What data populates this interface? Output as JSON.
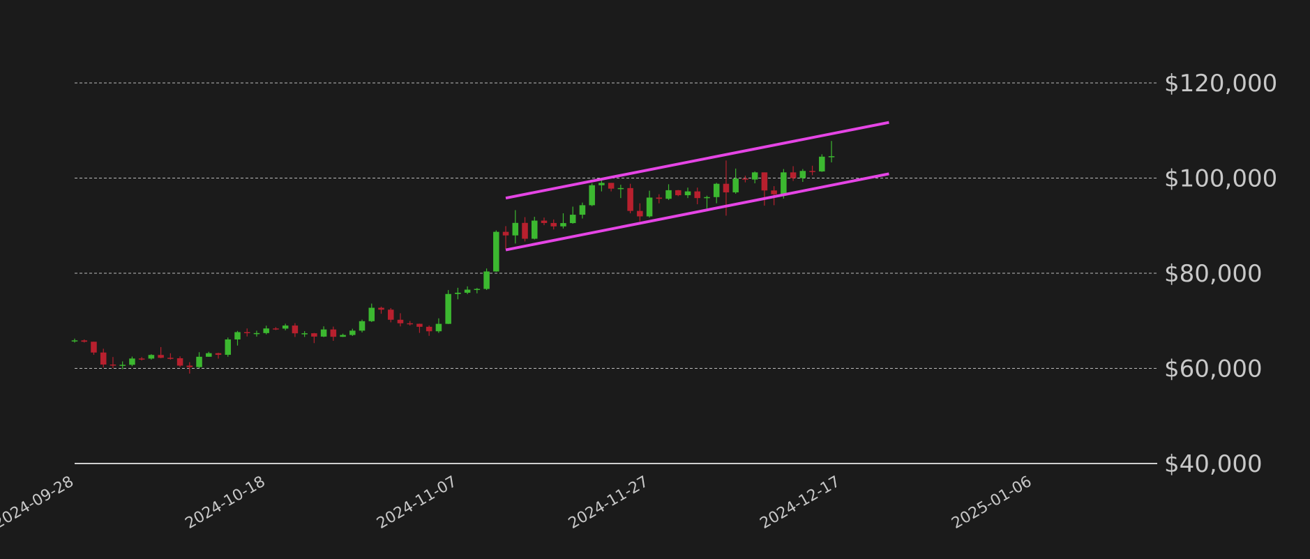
{
  "chart_data": {
    "type": "candlestick",
    "x": [
      "2024-09-28",
      "2024-09-29",
      "2024-09-30",
      "2024-10-01",
      "2024-10-02",
      "2024-10-03",
      "2024-10-04",
      "2024-10-05",
      "2024-10-06",
      "2024-10-07",
      "2024-10-08",
      "2024-10-09",
      "2024-10-10",
      "2024-10-11",
      "2024-10-12",
      "2024-10-13",
      "2024-10-14",
      "2024-10-15",
      "2024-10-16",
      "2024-10-17",
      "2024-10-18",
      "2024-10-19",
      "2024-10-20",
      "2024-10-21",
      "2024-10-22",
      "2024-10-23",
      "2024-10-24",
      "2024-10-25",
      "2024-10-26",
      "2024-10-27",
      "2024-10-28",
      "2024-10-29",
      "2024-10-30",
      "2024-10-31",
      "2024-11-01",
      "2024-11-02",
      "2024-11-03",
      "2024-11-04",
      "2024-11-05",
      "2024-11-06",
      "2024-11-07",
      "2024-11-08",
      "2024-11-09",
      "2024-11-10",
      "2024-11-11",
      "2024-11-12",
      "2024-11-13",
      "2024-11-14",
      "2024-11-15",
      "2024-11-16",
      "2024-11-17",
      "2024-11-18",
      "2024-11-19",
      "2024-11-20",
      "2024-11-21",
      "2024-11-22",
      "2024-11-23",
      "2024-11-24",
      "2024-11-25",
      "2024-11-26",
      "2024-11-27",
      "2024-11-28",
      "2024-11-29",
      "2024-11-30",
      "2024-12-01",
      "2024-12-02",
      "2024-12-03",
      "2024-12-04",
      "2024-12-05",
      "2024-12-06",
      "2024-12-07",
      "2024-12-08",
      "2024-12-09",
      "2024-12-10",
      "2024-12-11",
      "2024-12-12",
      "2024-12-13",
      "2024-12-14",
      "2024-12-15",
      "2024-12-16"
    ],
    "open": [
      65790,
      65880,
      65600,
      63330,
      60800,
      60630,
      60750,
      62070,
      62060,
      62820,
      62220,
      62130,
      60580,
      60270,
      62440,
      63190,
      62850,
      66080,
      67620,
      67400,
      67420,
      68390,
      68360,
      69000,
      67370,
      67380,
      66680,
      68180,
      66640,
      67020,
      67930,
      69920,
      72740,
      72340,
      70220,
      69480,
      69370,
      68740,
      67800,
      69360,
      75640,
      75900,
      76550,
      76700,
      80370,
      88700,
      87950,
      90580,
      87250,
      91060,
      90560,
      89850,
      90540,
      92300,
      94300,
      98500,
      98990,
      97780,
      97900,
      93100,
      91950,
      95900,
      95650,
      97450,
      96400,
      97200,
      95800,
      96000,
      98800,
      97000,
      99900,
      99700,
      101200,
      97400,
      96600,
      101200,
      100000,
      101500,
      101400,
      104500
    ],
    "high": [
      66260,
      66080,
      65600,
      64130,
      62390,
      61470,
      62480,
      62370,
      62980,
      64480,
      63180,
      62520,
      61300,
      63400,
      63480,
      63290,
      66480,
      67880,
      68390,
      67920,
      68970,
      68670,
      69380,
      69500,
      67820,
      67450,
      68840,
      68780,
      67300,
      68330,
      70240,
      73620,
      72980,
      72680,
      71590,
      69950,
      69400,
      69020,
      70520,
      76460,
      76940,
      77240,
      76900,
      81000,
      89000,
      89900,
      93260,
      91790,
      91860,
      91700,
      91300,
      92600,
      94000,
      94850,
      98900,
      99500,
      98990,
      98600,
      98800,
      94700,
      97350,
      96600,
      98700,
      97500,
      98000,
      98000,
      96300,
      99000,
      103700,
      102000,
      100500,
      101400,
      101200,
      98300,
      101900,
      102500,
      101900,
      102600,
      105000,
      107800
    ],
    "low": [
      65420,
      65430,
      62850,
      60190,
      60050,
      59830,
      60460,
      61660,
      61830,
      62130,
      61840,
      60300,
      58900,
      60060,
      62440,
      62050,
      62440,
      64800,
      66710,
      66680,
      67150,
      68050,
      68000,
      66600,
      66610,
      65310,
      66570,
      65790,
      66600,
      66810,
      67560,
      69740,
      71480,
      69680,
      68820,
      69000,
      67460,
      66840,
      67460,
      69320,
      74520,
      75610,
      75770,
      76480,
      80300,
      85100,
      86250,
      86680,
      87100,
      90100,
      89200,
      89400,
      90400,
      91500,
      94100,
      97200,
      97200,
      95800,
      92600,
      90900,
      91700,
      94700,
      95400,
      96200,
      95800,
      94500,
      93600,
      94700,
      92100,
      96700,
      99100,
      98900,
      94200,
      94300,
      95700,
      99400,
      99200,
      100600,
      101300,
      103300
    ],
    "close": [
      65880,
      65600,
      63330,
      60800,
      60630,
      60750,
      62070,
      62060,
      62820,
      62220,
      62130,
      60580,
      60270,
      62440,
      63190,
      62850,
      66080,
      67620,
      67400,
      67420,
      68390,
      68360,
      69000,
      67370,
      67380,
      66680,
      68180,
      66640,
      67020,
      67930,
      69920,
      72740,
      72340,
      70220,
      69480,
      69370,
      68740,
      67800,
      69360,
      75640,
      75900,
      76550,
      76700,
      80370,
      88700,
      87950,
      90580,
      87250,
      91060,
      90560,
      89850,
      90540,
      92300,
      94300,
      98500,
      98990,
      97780,
      97900,
      93100,
      91950,
      95900,
      95650,
      97450,
      96400,
      97200,
      95800,
      96000,
      98800,
      97000,
      99900,
      99700,
      101200,
      97400,
      96600,
      101200,
      100000,
      101500,
      101400,
      104500,
      104600
    ],
    "up_color": "#3cb830",
    "down_color": "#b8202e",
    "lines": [
      {
        "x": [
          "2024-11-12",
          "2024-12-22"
        ],
        "values": [
          95800,
          111700
        ],
        "color": "#e545e5"
      },
      {
        "x": [
          "2024-11-12",
          "2024-12-22"
        ],
        "values": [
          84900,
          100900
        ],
        "color": "#e545e5"
      }
    ],
    "xlim": [
      "2024-09-28",
      "2025-01-19"
    ],
    "xticks": [
      "2024-09-28",
      "2024-10-18",
      "2024-11-07",
      "2024-11-27",
      "2024-12-17",
      "2025-01-06"
    ],
    "ylim": [
      40000,
      120000
    ],
    "yticks": [
      {
        "value": 40000,
        "label": "$40,000"
      },
      {
        "value": 60000,
        "label": "$60,000"
      },
      {
        "value": 80000,
        "label": "$80,000"
      },
      {
        "value": 100000,
        "label": "$100,000"
      },
      {
        "value": 120000,
        "label": "$120,000"
      }
    ],
    "grid": true
  }
}
